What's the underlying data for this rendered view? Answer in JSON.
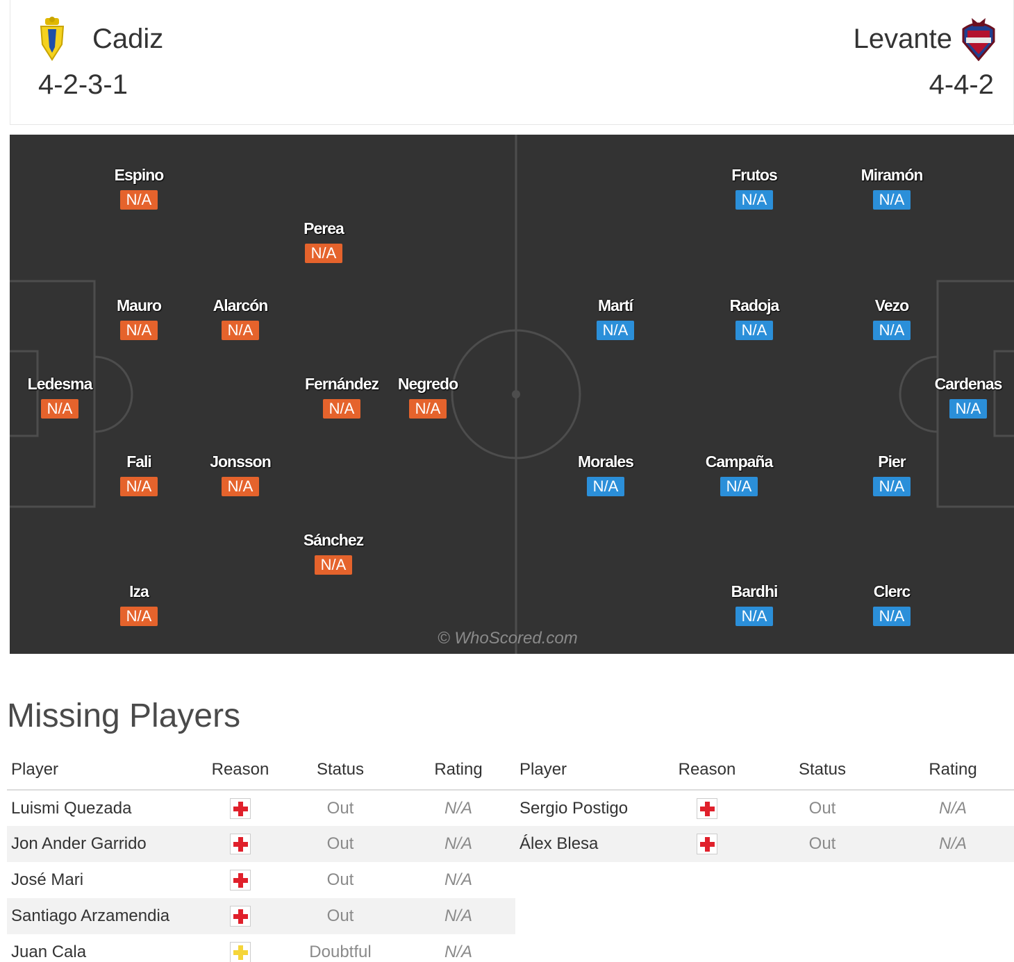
{
  "home": {
    "name": "Cadiz",
    "formation": "4-2-3-1",
    "crest": "cadiz-crest-icon",
    "color": "#e5632c"
  },
  "away": {
    "name": "Levante",
    "formation": "4-4-2",
    "crest": "levante-crest-icon",
    "color": "#2b8fd9"
  },
  "home_players": [
    {
      "name": "Espino",
      "rating": "N/A"
    },
    {
      "name": "Perea",
      "rating": "N/A"
    },
    {
      "name": "Mauro",
      "rating": "N/A"
    },
    {
      "name": "Alarcón",
      "rating": "N/A"
    },
    {
      "name": "Ledesma",
      "rating": "N/A"
    },
    {
      "name": "Fernández",
      "rating": "N/A"
    },
    {
      "name": "Negredo",
      "rating": "N/A"
    },
    {
      "name": "Fali",
      "rating": "N/A"
    },
    {
      "name": "Jonsson",
      "rating": "N/A"
    },
    {
      "name": "Sánchez",
      "rating": "N/A"
    },
    {
      "name": "Iza",
      "rating": "N/A"
    }
  ],
  "away_players": [
    {
      "name": "Frutos",
      "rating": "N/A"
    },
    {
      "name": "Miramón",
      "rating": "N/A"
    },
    {
      "name": "Martí",
      "rating": "N/A"
    },
    {
      "name": "Radoja",
      "rating": "N/A"
    },
    {
      "name": "Vezo",
      "rating": "N/A"
    },
    {
      "name": "Cardenas",
      "rating": "N/A"
    },
    {
      "name": "Morales",
      "rating": "N/A"
    },
    {
      "name": "Campaña",
      "rating": "N/A"
    },
    {
      "name": "Pier",
      "rating": "N/A"
    },
    {
      "name": "Bardhi",
      "rating": "N/A"
    },
    {
      "name": "Clerc",
      "rating": "N/A"
    }
  ],
  "watermark": "© WhoScored.com",
  "missing": {
    "title": "Missing Players",
    "headers": [
      "Player",
      "Reason",
      "Status",
      "Rating"
    ],
    "home": [
      {
        "player": "Luismi Quezada",
        "reason": "injury-icon",
        "status": "Out",
        "rating": "N/A"
      },
      {
        "player": "Jon Ander Garrido",
        "reason": "injury-icon",
        "status": "Out",
        "rating": "N/A"
      },
      {
        "player": "José Mari",
        "reason": "injury-icon",
        "status": "Out",
        "rating": "N/A"
      },
      {
        "player": "Santiago Arzamendia",
        "reason": "injury-icon",
        "status": "Out",
        "rating": "N/A"
      },
      {
        "player": "Juan Cala",
        "reason": "doubtful-icon",
        "status": "Doubtful",
        "rating": "N/A"
      }
    ],
    "away": [
      {
        "player": "Sergio Postigo",
        "reason": "injury-icon",
        "status": "Out",
        "rating": "N/A"
      },
      {
        "player": "Álex Blesa",
        "reason": "injury-icon",
        "status": "Out",
        "rating": "N/A"
      }
    ]
  }
}
